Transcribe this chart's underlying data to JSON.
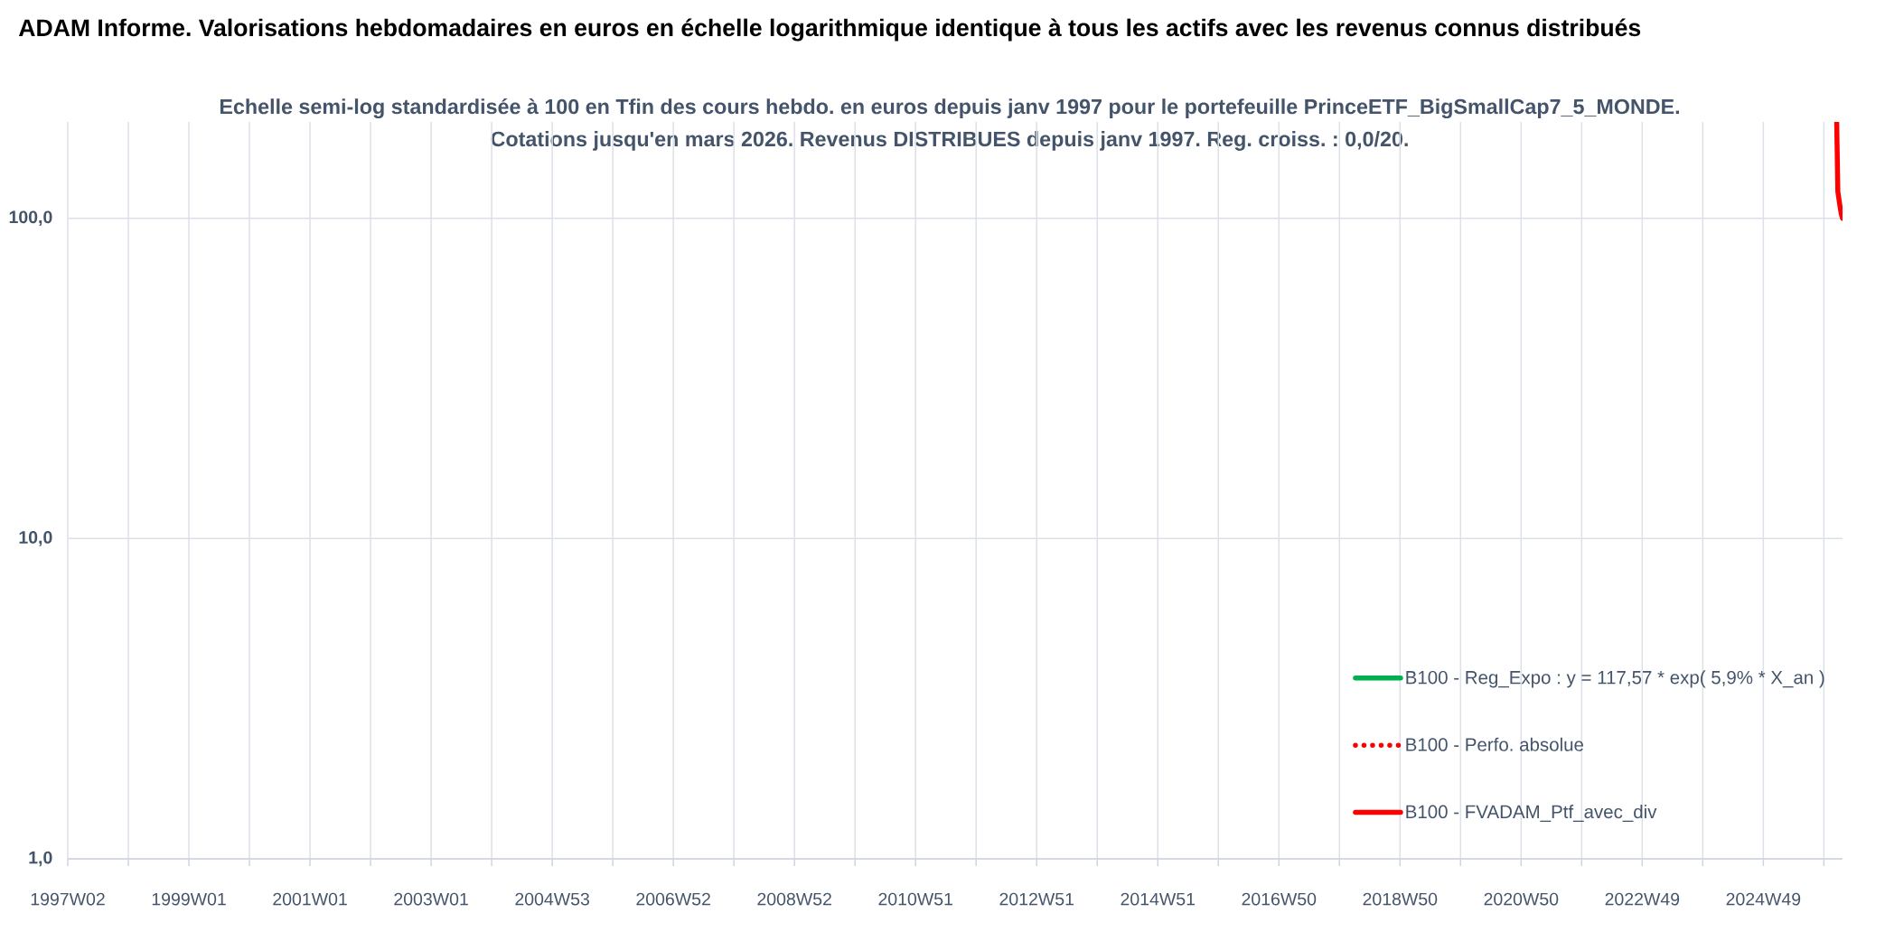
{
  "chart_data": {
    "type": "line",
    "title": "ADAM Informe. Valorisations hebdomadaires en euros en échelle logarithmique identique à tous les actifs avec les revenus connus distribués",
    "subtitle": "Echelle semi-log standardisée à 100 en Tfin des cours hebdo. en euros depuis janv 1997 pour le portefeuille PrinceETF_BigSmallCap7_5_MONDE.",
    "annotations": [
      "Cotations jusqu'en mars 2026. Revenus DISTRIBUES depuis janv 1997. Reg. croiss. : 0,0/20."
    ],
    "xlim": [
      "1997-01-10",
      "2026-03-27"
    ],
    "xticks": [
      {
        "value": "1997-01-10",
        "label": "1997W02"
      },
      {
        "value": "1998-01-09",
        "label": null
      },
      {
        "value": "1999-01-08",
        "label": "1999W01"
      },
      {
        "value": "2000-01-07",
        "label": null
      },
      {
        "value": "2001-01-05",
        "label": "2001W01"
      },
      {
        "value": "2002-01-04",
        "label": null
      },
      {
        "value": "2003-01-03",
        "label": "2003W01"
      },
      {
        "value": "2004-01-02",
        "label": null
      },
      {
        "value": "2004-12-31",
        "label": "2004W53"
      },
      {
        "value": "2005-12-30",
        "label": null
      },
      {
        "value": "2006-12-29",
        "label": "2006W52"
      },
      {
        "value": "2007-12-28",
        "label": null
      },
      {
        "value": "2008-12-26",
        "label": "2008W52"
      },
      {
        "value": "2009-12-25",
        "label": null
      },
      {
        "value": "2010-12-24",
        "label": "2010W51"
      },
      {
        "value": "2011-12-23",
        "label": null
      },
      {
        "value": "2012-12-21",
        "label": "2012W51"
      },
      {
        "value": "2013-12-20",
        "label": null
      },
      {
        "value": "2014-12-19",
        "label": "2014W51"
      },
      {
        "value": "2015-12-18",
        "label": null
      },
      {
        "value": "2016-12-16",
        "label": "2016W50"
      },
      {
        "value": "2017-12-15",
        "label": null
      },
      {
        "value": "2018-12-14",
        "label": "2018W50"
      },
      {
        "value": "2019-12-13",
        "label": null
      },
      {
        "value": "2020-12-11",
        "label": "2020W50"
      },
      {
        "value": "2021-12-10",
        "label": null
      },
      {
        "value": "2022-12-09",
        "label": "2022W49"
      },
      {
        "value": "2023-12-08",
        "label": null
      },
      {
        "value": "2024-12-06",
        "label": "2024W49"
      },
      {
        "value": "2025-12-05",
        "label": null
      }
    ],
    "ylim": [
      1,
      200
    ],
    "yticks": [
      {
        "value": 1,
        "label": "1,0"
      },
      {
        "value": 10,
        "label": "10,0"
      },
      {
        "value": 100,
        "label": "100,0"
      }
    ],
    "log": "y",
    "grid": true,
    "legend": "bottom right",
    "series": [
      {
        "name": "B100 - Reg_Expo : y = 117,57 * exp( 5,9% * X_an )",
        "color": "#00b050",
        "values": [
          null
        ]
      },
      {
        "name": "B100 - Perfo. absolue",
        "color": "#ff0000",
        "line_style": "dotted",
        "values": [
          null
        ]
      },
      {
        "name": "B100 - FVADAM_Ptf_avec_div",
        "color": "#ff0000",
        "x": [
          "2026-02-20",
          "2026-02-27",
          "2026-03-13",
          "2026-03-20",
          "2026-03-27"
        ],
        "values": [
          200,
          121,
          108,
          103,
          100
        ]
      }
    ]
  }
}
